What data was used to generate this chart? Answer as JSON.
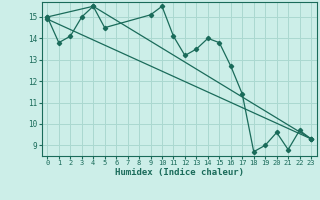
{
  "xlabel": "Humidex (Indice chaleur)",
  "bg_color": "#cceee8",
  "grid_color": "#aad8d0",
  "line_color": "#1a6b5a",
  "xlim": [
    -0.5,
    23.5
  ],
  "ylim": [
    8.5,
    15.7
  ],
  "yticks": [
    9,
    10,
    11,
    12,
    13,
    14,
    15
  ],
  "xticks": [
    0,
    1,
    2,
    3,
    4,
    5,
    6,
    7,
    8,
    9,
    10,
    11,
    12,
    13,
    14,
    15,
    16,
    17,
    18,
    19,
    20,
    21,
    22,
    23
  ],
  "series1_x": [
    0,
    1,
    2,
    3,
    4,
    5,
    9,
    10,
    11,
    12,
    13,
    14,
    15,
    16,
    17,
    18,
    19,
    20,
    21,
    22,
    23
  ],
  "series1_y": [
    15.0,
    13.8,
    14.1,
    15.0,
    15.5,
    14.5,
    15.1,
    15.5,
    14.1,
    13.2,
    13.5,
    14.0,
    13.8,
    12.7,
    11.4,
    8.7,
    9.0,
    9.6,
    8.8,
    9.7,
    9.3
  ],
  "series2_x": [
    0,
    23
  ],
  "series2_y": [
    14.9,
    9.3
  ],
  "series3_x": [
    0,
    4,
    23
  ],
  "series3_y": [
    15.0,
    15.5,
    9.3
  ]
}
